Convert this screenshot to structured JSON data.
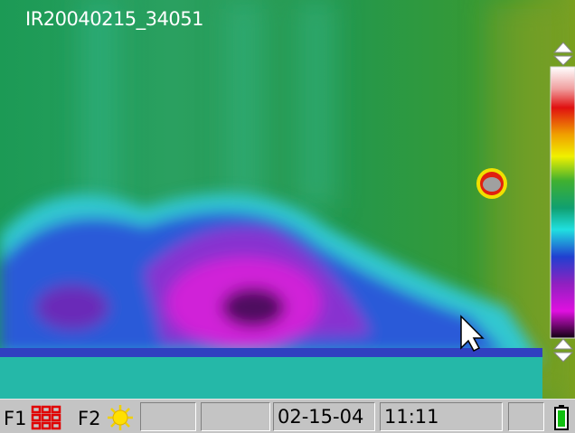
{
  "image": {
    "filename": "IR20040215_34051"
  },
  "status_bar": {
    "f1": "F1",
    "f2": "F2",
    "date": "02-15-04",
    "time": "11:11"
  }
}
